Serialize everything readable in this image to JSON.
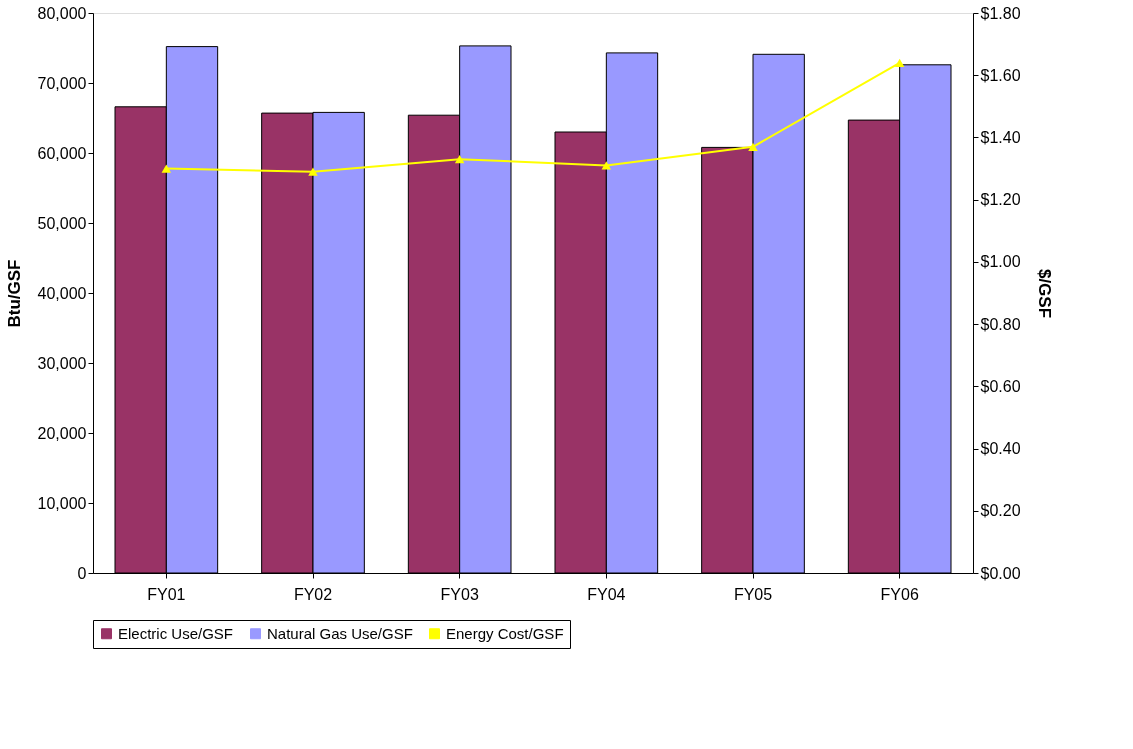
{
  "chart_data": {
    "type": "bar",
    "categories": [
      "FY01",
      "FY02",
      "FY03",
      "FY04",
      "FY05",
      "FY06"
    ],
    "ylabel": "Btu/GSF",
    "y2label": "$/GSF",
    "series": [
      {
        "name": "Electric Use/GSF",
        "color": "#993366",
        "values": [
          66600,
          65700,
          65400,
          63000,
          60800,
          64700
        ]
      },
      {
        "name": "Natural Gas Use/GSF",
        "color": "#9999ff",
        "values": [
          75200,
          65800,
          75300,
          74300,
          74100,
          72600
        ]
      },
      {
        "name": "Energy Cost/GSF",
        "type": "line",
        "axis": "y2",
        "color": "#ffff00",
        "marker": "triangle",
        "values": [
          1.3,
          1.29,
          1.33,
          1.31,
          1.37,
          1.64
        ]
      }
    ],
    "ylim": [
      0,
      80000
    ],
    "yticks": [
      0,
      {
        "value": 10000,
        "label": "10,000"
      },
      {
        "value": 20000,
        "label": "20,000"
      },
      {
        "value": 30000,
        "label": "30,000"
      },
      {
        "value": 40000,
        "label": "40,000"
      },
      {
        "value": 50000,
        "label": "50,000"
      },
      {
        "value": 60000,
        "label": "60,000"
      },
      {
        "value": 70000,
        "label": "70,000"
      },
      {
        "value": 80000,
        "label": "80,000"
      }
    ],
    "y2lim": [
      0,
      1.8
    ],
    "y2ticks": [
      {
        "value": 0,
        "label": "$0.00"
      },
      {
        "value": 0.2,
        "label": "$0.20"
      },
      {
        "value": 0.4,
        "label": "$0.40"
      },
      {
        "value": 0.6,
        "label": "$0.60"
      },
      {
        "value": 0.8,
        "label": "$0.80"
      },
      {
        "value": 1.0,
        "label": "$1.00"
      },
      {
        "value": 1.2,
        "label": "$1.20"
      },
      {
        "value": 1.4,
        "label": "$1.40"
      },
      {
        "value": 1.6,
        "label": "$1.60"
      },
      {
        "value": 1.8,
        "label": "$1.80"
      }
    ],
    "grid": false,
    "legend": "bottom"
  }
}
